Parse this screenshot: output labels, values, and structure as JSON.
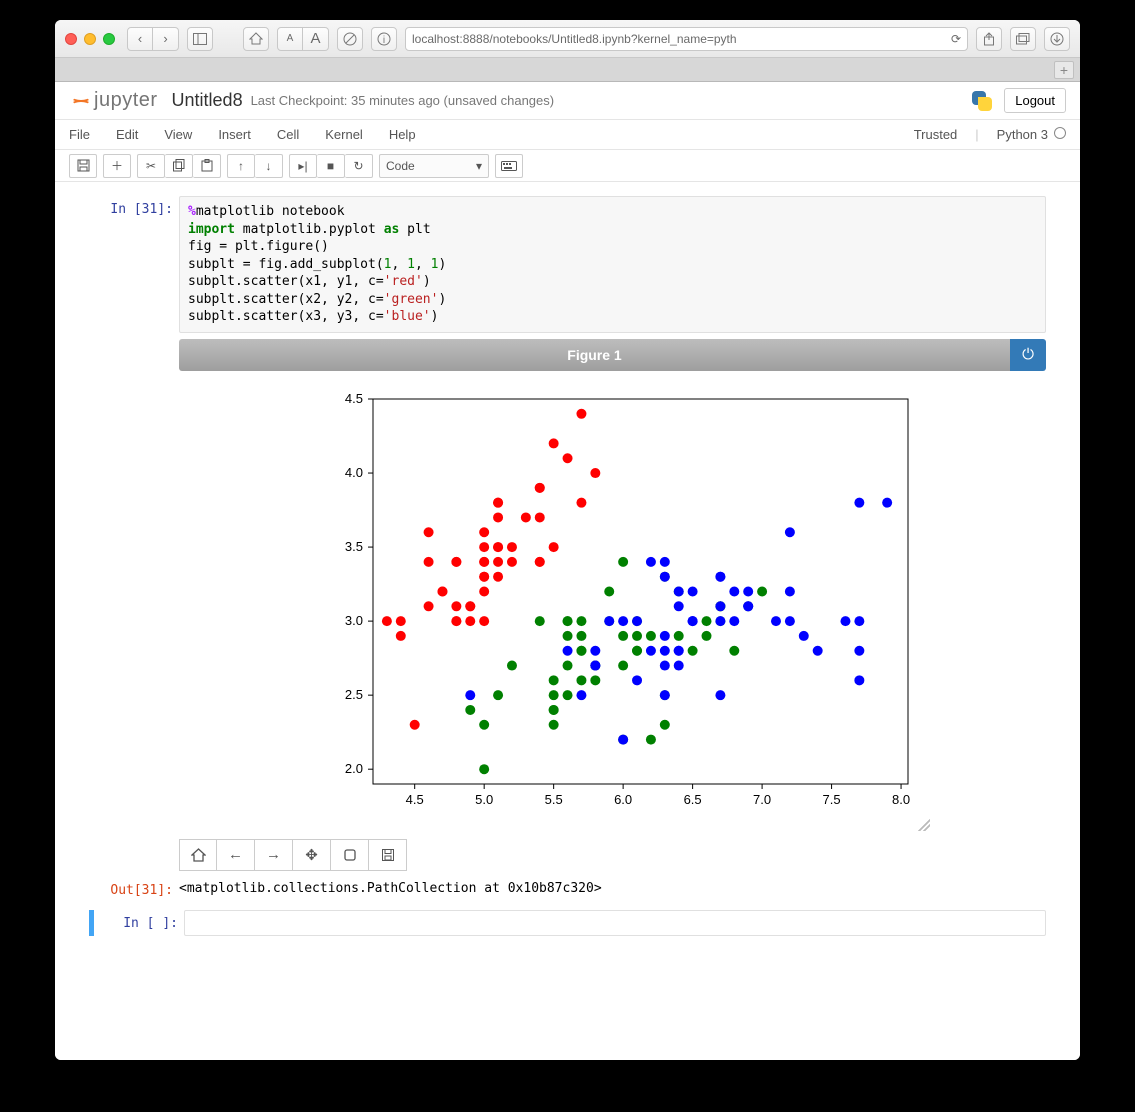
{
  "browser": {
    "url": "localhost:8888/notebooks/Untitled8.ipynb?kernel_name=pyth"
  },
  "jupyter": {
    "logo_text": "jupyter",
    "title": "Untitled8",
    "checkpoint": "Last Checkpoint: 35 minutes ago (unsaved changes)",
    "logout": "Logout",
    "trusted": "Trusted",
    "kernel": "Python 3",
    "menus": [
      "File",
      "Edit",
      "View",
      "Insert",
      "Cell",
      "Kernel",
      "Help"
    ],
    "celltype": "Code"
  },
  "code": {
    "prompt_in": "In [31]:",
    "lines": [
      [
        {
          "t": "%",
          "c": "mag"
        },
        {
          "t": "matplotlib notebook",
          "c": ""
        }
      ],
      [
        {
          "t": "import",
          "c": "kw"
        },
        {
          "t": " matplotlib.pyplot ",
          "c": ""
        },
        {
          "t": "as",
          "c": "kw"
        },
        {
          "t": " plt",
          "c": ""
        }
      ],
      [
        {
          "t": "fig = plt.figure()",
          "c": ""
        }
      ],
      [
        {
          "t": "subplt = fig.add_subplot(",
          "c": ""
        },
        {
          "t": "1",
          "c": "num"
        },
        {
          "t": ", ",
          "c": ""
        },
        {
          "t": "1",
          "c": "num"
        },
        {
          "t": ", ",
          "c": ""
        },
        {
          "t": "1",
          "c": "num"
        },
        {
          "t": ")",
          "c": ""
        }
      ],
      [
        {
          "t": "subplt.scatter(x1, y1, c=",
          "c": ""
        },
        {
          "t": "'red'",
          "c": "str"
        },
        {
          "t": ")",
          "c": ""
        }
      ],
      [
        {
          "t": "subplt.scatter(x2, y2, c=",
          "c": ""
        },
        {
          "t": "'green'",
          "c": "str"
        },
        {
          "t": ")",
          "c": ""
        }
      ],
      [
        {
          "t": "subplt.scatter(x3, y3, c=",
          "c": ""
        },
        {
          "t": "'blue'",
          "c": "str"
        },
        {
          "t": ")",
          "c": ""
        }
      ]
    ]
  },
  "figure": {
    "title": "Figure 1"
  },
  "output": {
    "prompt_out": "Out[31]:",
    "text": "<matplotlib.collections.PathCollection at 0x10b87c320>"
  },
  "empty": {
    "prompt": "In [ ]:"
  },
  "chart": {
    "type": "scatter",
    "xlim": [
      4.2,
      8.05
    ],
    "ylim": [
      1.9,
      4.5
    ],
    "xticks": [
      4.5,
      5.0,
      5.5,
      6.0,
      6.5,
      7.0,
      7.5,
      8.0
    ],
    "yticks": [
      2.0,
      2.5,
      3.0,
      3.5,
      4.0,
      4.5
    ],
    "background_color": "#ffffff",
    "border_color": "#000000",
    "tick_font_size": 13,
    "marker_radius": 5,
    "series": [
      {
        "name": "x1y1",
        "color": "#ff0000",
        "points": [
          [
            5.1,
            3.5
          ],
          [
            4.9,
            3.0
          ],
          [
            4.7,
            3.2
          ],
          [
            4.6,
            3.1
          ],
          [
            5.0,
            3.6
          ],
          [
            5.4,
            3.9
          ],
          [
            4.6,
            3.4
          ],
          [
            5.0,
            3.4
          ],
          [
            4.4,
            2.9
          ],
          [
            4.9,
            3.1
          ],
          [
            5.4,
            3.7
          ],
          [
            4.8,
            3.4
          ],
          [
            4.8,
            3.0
          ],
          [
            4.3,
            3.0
          ],
          [
            5.8,
            4.0
          ],
          [
            5.7,
            4.4
          ],
          [
            5.4,
            3.9
          ],
          [
            5.1,
            3.5
          ],
          [
            5.7,
            3.8
          ],
          [
            5.1,
            3.8
          ],
          [
            5.4,
            3.4
          ],
          [
            5.1,
            3.7
          ],
          [
            4.6,
            3.6
          ],
          [
            5.1,
            3.3
          ],
          [
            4.8,
            3.4
          ],
          [
            5.0,
            3.0
          ],
          [
            5.0,
            3.4
          ],
          [
            5.2,
            3.5
          ],
          [
            5.2,
            3.4
          ],
          [
            4.7,
            3.2
          ],
          [
            4.8,
            3.1
          ],
          [
            5.4,
            3.4
          ],
          [
            5.5,
            4.2
          ],
          [
            4.9,
            3.1
          ],
          [
            5.0,
            3.2
          ],
          [
            5.5,
            3.5
          ],
          [
            4.4,
            3.0
          ],
          [
            5.1,
            3.4
          ],
          [
            5.0,
            3.5
          ],
          [
            4.5,
            2.3
          ],
          [
            5.0,
            3.3
          ],
          [
            5.1,
            3.8
          ],
          [
            4.8,
            3.0
          ],
          [
            5.3,
            3.7
          ],
          [
            5.0,
            3.3
          ],
          [
            5.6,
            4.1
          ]
        ]
      },
      {
        "name": "x2y2",
        "color": "#008000",
        "points": [
          [
            7.0,
            3.2
          ],
          [
            6.4,
            3.2
          ],
          [
            6.9,
            3.1
          ],
          [
            5.5,
            2.3
          ],
          [
            6.5,
            2.8
          ],
          [
            5.7,
            2.8
          ],
          [
            6.3,
            3.3
          ],
          [
            4.9,
            2.4
          ],
          [
            6.6,
            2.9
          ],
          [
            5.2,
            2.7
          ],
          [
            5.0,
            2.0
          ],
          [
            5.9,
            3.0
          ],
          [
            6.0,
            2.2
          ],
          [
            6.1,
            2.9
          ],
          [
            5.6,
            2.9
          ],
          [
            6.7,
            3.1
          ],
          [
            5.6,
            3.0
          ],
          [
            5.8,
            2.7
          ],
          [
            6.2,
            2.2
          ],
          [
            5.6,
            2.5
          ],
          [
            5.9,
            3.2
          ],
          [
            6.1,
            2.8
          ],
          [
            6.3,
            2.5
          ],
          [
            6.1,
            2.8
          ],
          [
            6.4,
            2.9
          ],
          [
            6.6,
            3.0
          ],
          [
            6.8,
            2.8
          ],
          [
            6.7,
            3.0
          ],
          [
            6.0,
            2.9
          ],
          [
            5.7,
            2.6
          ],
          [
            5.5,
            2.4
          ],
          [
            5.5,
            2.4
          ],
          [
            5.8,
            2.7
          ],
          [
            6.0,
            2.7
          ],
          [
            5.4,
            3.0
          ],
          [
            6.0,
            3.4
          ],
          [
            6.7,
            3.1
          ],
          [
            6.3,
            2.3
          ],
          [
            5.6,
            3.0
          ],
          [
            5.5,
            2.5
          ],
          [
            5.5,
            2.6
          ],
          [
            6.1,
            3.0
          ],
          [
            5.8,
            2.6
          ],
          [
            5.0,
            2.3
          ],
          [
            5.6,
            2.7
          ],
          [
            5.7,
            3.0
          ],
          [
            5.7,
            2.9
          ],
          [
            6.2,
            2.9
          ],
          [
            5.1,
            2.5
          ],
          [
            5.7,
            2.8
          ]
        ]
      },
      {
        "name": "x3y3",
        "color": "#0000ff",
        "points": [
          [
            6.3,
            3.3
          ],
          [
            5.8,
            2.7
          ],
          [
            7.1,
            3.0
          ],
          [
            6.3,
            2.9
          ],
          [
            6.5,
            3.0
          ],
          [
            7.6,
            3.0
          ],
          [
            4.9,
            2.5
          ],
          [
            7.3,
            2.9
          ],
          [
            6.7,
            2.5
          ],
          [
            7.2,
            3.6
          ],
          [
            6.5,
            3.2
          ],
          [
            6.4,
            2.7
          ],
          [
            6.8,
            3.0
          ],
          [
            5.7,
            2.5
          ],
          [
            5.8,
            2.8
          ],
          [
            6.4,
            3.2
          ],
          [
            6.5,
            3.0
          ],
          [
            7.7,
            3.8
          ],
          [
            7.7,
            2.6
          ],
          [
            6.0,
            2.2
          ],
          [
            6.9,
            3.2
          ],
          [
            5.6,
            2.8
          ],
          [
            7.7,
            2.8
          ],
          [
            6.3,
            2.7
          ],
          [
            6.7,
            3.3
          ],
          [
            7.2,
            3.2
          ],
          [
            6.2,
            2.8
          ],
          [
            6.1,
            3.0
          ],
          [
            6.4,
            2.8
          ],
          [
            7.2,
            3.0
          ],
          [
            7.4,
            2.8
          ],
          [
            7.9,
            3.8
          ],
          [
            6.4,
            2.8
          ],
          [
            6.3,
            2.8
          ],
          [
            6.1,
            2.6
          ],
          [
            7.7,
            3.0
          ],
          [
            6.3,
            3.4
          ],
          [
            6.4,
            3.1
          ],
          [
            6.0,
            3.0
          ],
          [
            6.9,
            3.1
          ],
          [
            6.7,
            3.1
          ],
          [
            6.9,
            3.1
          ],
          [
            5.8,
            2.7
          ],
          [
            6.8,
            3.2
          ],
          [
            6.7,
            3.3
          ],
          [
            6.7,
            3.0
          ],
          [
            6.3,
            2.5
          ],
          [
            6.5,
            3.0
          ],
          [
            6.2,
            3.4
          ],
          [
            5.9,
            3.0
          ]
        ]
      }
    ]
  }
}
